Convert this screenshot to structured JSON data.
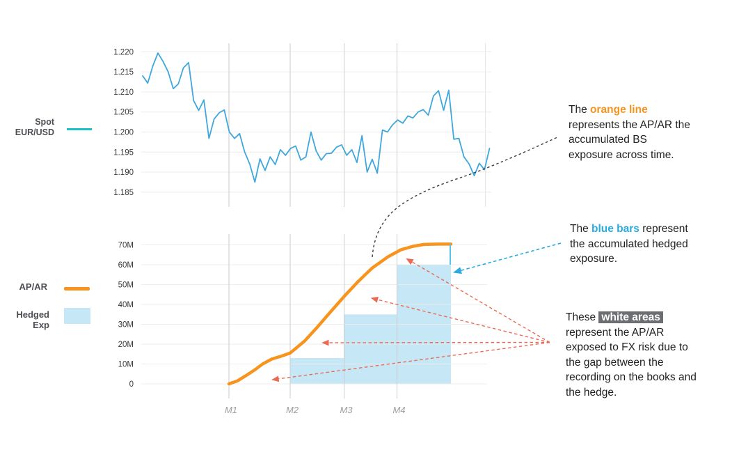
{
  "colors": {
    "spot_line": "#3FA7DC",
    "spot_swatch": "#1CC1C6",
    "orange": "#F7941E",
    "bar_fill": "#C5E7F6",
    "gap_marker_blue": "#56C3EA",
    "red_arrow": "#EC6A55",
    "blue_arrow": "#29ABE2",
    "black_arrow": "#3B3B3B",
    "grid_h": "#ECECEC",
    "grid_v": "#CBCBCB",
    "grid_v_faint": "#E7E7E7",
    "tick_text": "#3A3A3A",
    "month_text": "#9C9C9C",
    "legend_text": "#4D4E53",
    "body_text": "#222222",
    "highlight_bg": "#6D6E71",
    "highlight_fg": "#FFFFFF"
  },
  "legend": {
    "spot": {
      "line1": "Spot",
      "line2": "EUR/USD"
    },
    "apar": {
      "label": "AP/AR"
    },
    "hedged": {
      "line1": "Hedged",
      "line2": "Exp"
    }
  },
  "chart_data": [
    {
      "id": "spot-eurusd",
      "type": "line",
      "series_name": "Spot EUR/USD",
      "ylim": [
        1.185,
        1.22
      ],
      "y_ticks": [
        "1.220",
        "1.215",
        "1.210",
        "1.205",
        "1.200",
        "1.195",
        "1.190",
        "1.185"
      ],
      "x_gridline_months": [
        "M1",
        "M2",
        "M3",
        "M4"
      ],
      "x_axis_labels_shown": false,
      "values": [
        1.214,
        1.2122,
        1.2165,
        1.2197,
        1.2176,
        1.215,
        1.2108,
        1.212,
        1.216,
        1.2173,
        1.2078,
        1.2054,
        1.208,
        1.1984,
        1.2032,
        1.2048,
        1.2055,
        1.2,
        1.1984,
        1.1996,
        1.195,
        1.192,
        1.1875,
        1.1933,
        1.1904,
        1.1938,
        1.1919,
        1.1956,
        1.1942,
        1.1959,
        1.1965,
        1.193,
        1.1938,
        1.2,
        1.1953,
        1.193,
        1.1946,
        1.1947,
        1.1962,
        1.1968,
        1.1942,
        1.1956,
        1.1924,
        1.1991,
        1.19,
        1.1932,
        1.1897,
        1.2005,
        1.2,
        1.2018,
        1.203,
        1.2022,
        1.204,
        1.2035,
        1.205,
        1.2056,
        1.2042,
        1.209,
        1.2103,
        1.2054,
        1.2104,
        1.1982,
        1.1984,
        1.1938,
        1.192,
        1.1891,
        1.1922,
        1.1906,
        1.1959
      ]
    },
    {
      "id": "exposure",
      "type": "mixed",
      "ylim": [
        0,
        70
      ],
      "y_unit": "millions",
      "y_ticks": [
        "70M",
        "60M",
        "50M",
        "40M",
        "30M",
        "20M",
        "10M",
        "0"
      ],
      "x_ticks": [
        "M1",
        "M2",
        "M3",
        "M4"
      ],
      "series": [
        {
          "name": "AP/AR",
          "type": "line",
          "points_month_value": [
            [
              1,
              0
            ],
            [
              1.14,
              1.5
            ],
            [
              1.27,
              4
            ],
            [
              1.42,
              7
            ],
            [
              1.55,
              10
            ],
            [
              1.7,
              12.5
            ],
            [
              1.85,
              13.9
            ],
            [
              2,
              15.5
            ],
            [
              2.27,
              21.6
            ],
            [
              2.5,
              28.5
            ],
            [
              2.74,
              36
            ],
            [
              3,
              44
            ],
            [
              3.27,
              51.7
            ],
            [
              3.53,
              58.3
            ],
            [
              3.83,
              64
            ],
            [
              4.07,
              67.5
            ],
            [
              4.3,
              69.3
            ],
            [
              4.5,
              70.2
            ],
            [
              4.75,
              70.4
            ],
            [
              5,
              70.4
            ]
          ]
        },
        {
          "name": "Hedged Exp",
          "type": "bar",
          "bars": [
            {
              "from_month": 2,
              "to_month": 3,
              "value_millions": 13
            },
            {
              "from_month": 3,
              "to_month": 4,
              "value_millions": 35
            },
            {
              "from_month": 4,
              "to_month": 5,
              "value_millions": 60
            }
          ]
        },
        {
          "name": "hedge gap marker",
          "type": "segment",
          "at_month": 5,
          "from_value": 60,
          "to_value": 70.4
        }
      ]
    }
  ],
  "annotations": {
    "orange_note": {
      "pre": "The ",
      "highlight": "orange line",
      "rest": "\nrepresents the AP/AR the\naccumulated BS\nexposure across time."
    },
    "blue_note": {
      "pre": "The ",
      "highlight": "blue bars",
      "rest": " represent\nthe accumulated hedged\nexposure."
    },
    "white_note": {
      "pre": "These ",
      "highlight": "white areas",
      "rest": "\nrepresent the AP/AR\nexposed to FX risk due to\nthe gap between the\nrecording on the books and\nthe hedge."
    }
  }
}
